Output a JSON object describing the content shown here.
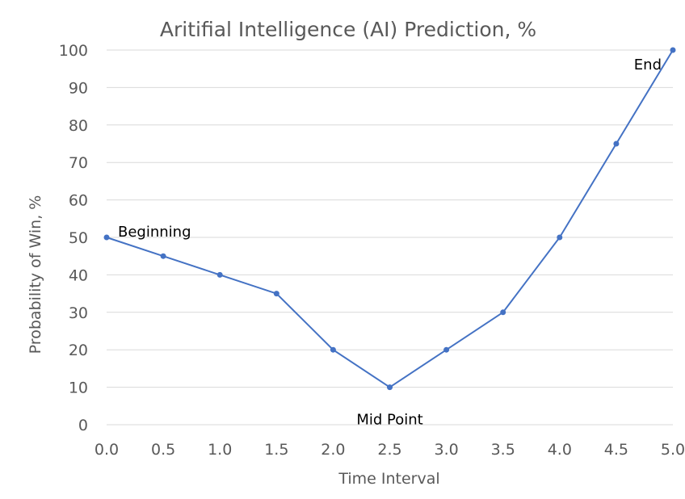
{
  "chart_data": {
    "type": "line",
    "title": "Aritifial Intelligence (AI) Prediction, %",
    "xlabel": "Time Interval",
    "ylabel": "Probability of Win, %",
    "xlim": [
      0,
      5
    ],
    "ylim": [
      0,
      100
    ],
    "x_ticks": [
      "0.0",
      "0.5",
      "1.0",
      "1.5",
      "2.0",
      "2.5",
      "3.0",
      "3.5",
      "4.0",
      "4.5",
      "5.0"
    ],
    "y_ticks": [
      "0",
      "10",
      "20",
      "30",
      "40",
      "50",
      "60",
      "70",
      "80",
      "90",
      "100"
    ],
    "grid": true,
    "legend": false,
    "series": [
      {
        "color": "#4472c4",
        "x": [
          0,
          0.5,
          1.0,
          1.5,
          2.0,
          2.5,
          3.0,
          3.5,
          4.0,
          4.5,
          5.0
        ],
        "y": [
          50,
          45,
          40,
          35,
          20,
          10,
          20,
          30,
          50,
          75,
          100
        ]
      }
    ],
    "annotations": [
      {
        "text": "Beginning",
        "x": 0,
        "y": 50
      },
      {
        "text": "Mid Point",
        "x": 2.5,
        "y": 10
      },
      {
        "text": "End",
        "x": 5.0,
        "y": 100
      }
    ]
  }
}
